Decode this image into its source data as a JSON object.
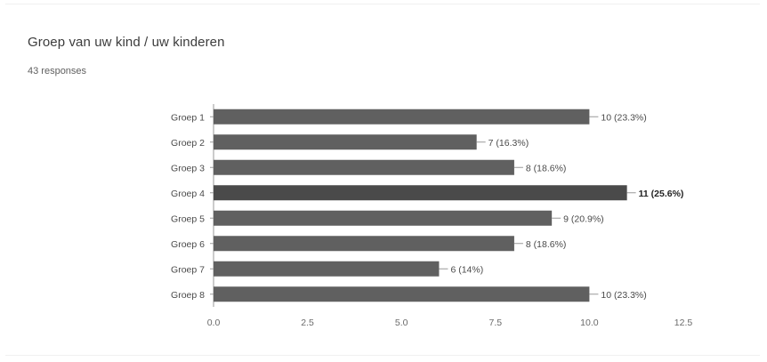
{
  "question": {
    "title": "Groep van uw kind / uw kinderen",
    "responses": "43 responses"
  },
  "colors": {
    "bar": "#606060",
    "bar_highlight": "#4a4a4a",
    "axis": "#9a9a9a",
    "label_line": "#999999"
  },
  "chart_data": {
    "type": "bar",
    "orientation": "horizontal",
    "categories": [
      "Groep 1",
      "Groep 2",
      "Groep 3",
      "Groep 4",
      "Groep 5",
      "Groep 6",
      "Groep 7",
      "Groep 8"
    ],
    "values": [
      10,
      7,
      8,
      11,
      9,
      8,
      6,
      10
    ],
    "data_labels": [
      "10 (23.3%)",
      "7 (16.3%)",
      "8 (18.6%)",
      "11 (25.6%)",
      "9 (20.9%)",
      "8 (18.6%)",
      "6 (14%)",
      "10 (23.3%)"
    ],
    "highlight_index": 3,
    "xlim": [
      0,
      12.5
    ],
    "xticks": [
      "0.0",
      "2.5",
      "5.0",
      "7.5",
      "10.0",
      "12.5"
    ],
    "grid": false,
    "legend": "none"
  }
}
